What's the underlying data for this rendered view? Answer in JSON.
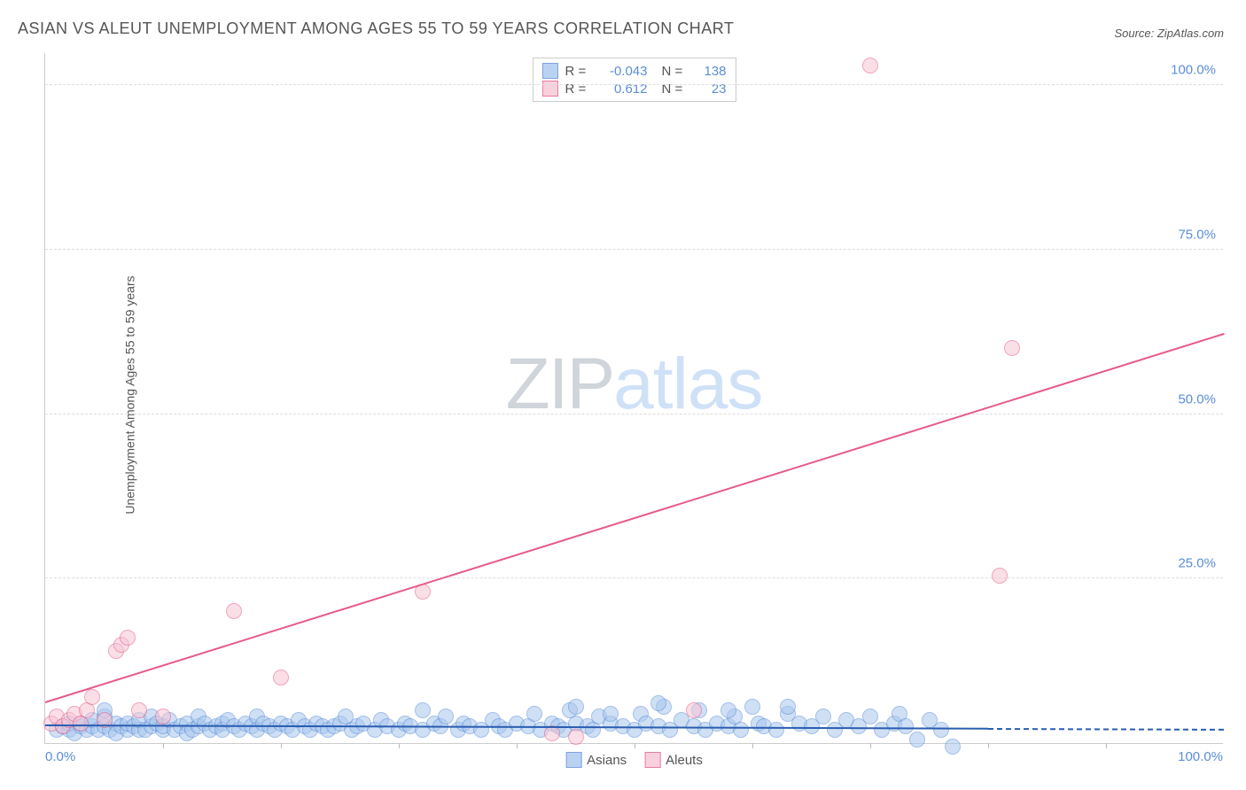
{
  "title": "ASIAN VS ALEUT UNEMPLOYMENT AMONG AGES 55 TO 59 YEARS CORRELATION CHART",
  "source": "Source: ZipAtlas.com",
  "y_axis_label": "Unemployment Among Ages 55 to 59 years",
  "watermark": {
    "part1": "ZIP",
    "part2": "atlas"
  },
  "chart": {
    "type": "scatter",
    "xlim": [
      0,
      100
    ],
    "ylim": [
      0,
      105
    ],
    "x_ticks": {
      "start": "0.0%",
      "end": "100.0%"
    },
    "y_ticks": [
      {
        "v": 25,
        "label": "25.0%"
      },
      {
        "v": 50,
        "label": "50.0%"
      },
      {
        "v": 75,
        "label": "75.0%"
      },
      {
        "v": 100,
        "label": "100.0%"
      }
    ],
    "minor_x_ticks_count": 10,
    "background_color": "#ffffff",
    "grid_color": "#dddddd",
    "axis_color": "#cccccc",
    "tick_label_color": "#5b8dd6",
    "label_color": "#555555",
    "title_fontsize": 18,
    "tick_fontsize": 15,
    "label_fontsize": 14,
    "marker_radius": 9,
    "marker_stroke_width": 1.5,
    "series": [
      {
        "name": "Asians",
        "fill_color": "#a9c7ee",
        "stroke_color": "#5b8dd6",
        "fill_opacity": 0.55,
        "R": "-0.043",
        "N": "138",
        "trend": {
          "x1": 0,
          "y1": 2.5,
          "x2": 80,
          "y2": 2.0,
          "dash_to_x": 100,
          "color": "#2a5db0",
          "width": 2
        },
        "points": [
          [
            1,
            2
          ],
          [
            1.5,
            2.5
          ],
          [
            2,
            2
          ],
          [
            2,
            3
          ],
          [
            2.5,
            1.5
          ],
          [
            3,
            2.5
          ],
          [
            3,
            3
          ],
          [
            3.5,
            2
          ],
          [
            4,
            2.5
          ],
          [
            4,
            3.5
          ],
          [
            4.5,
            2
          ],
          [
            5,
            2.5
          ],
          [
            5,
            4
          ],
          [
            5.5,
            2
          ],
          [
            6,
            3
          ],
          [
            6,
            1.5
          ],
          [
            6.5,
            2.5
          ],
          [
            7,
            2
          ],
          [
            7,
            3
          ],
          [
            7.5,
            2.5
          ],
          [
            8,
            2
          ],
          [
            8,
            3.5
          ],
          [
            8.5,
            2
          ],
          [
            9,
            2.5
          ],
          [
            9,
            4
          ],
          [
            9.5,
            3
          ],
          [
            10,
            2
          ],
          [
            10,
            2.5
          ],
          [
            10.5,
            3.5
          ],
          [
            11,
            2
          ],
          [
            11.5,
            2.5
          ],
          [
            12,
            3
          ],
          [
            12,
            1.5
          ],
          [
            12.5,
            2
          ],
          [
            13,
            2.5
          ],
          [
            13,
            4
          ],
          [
            13.5,
            3
          ],
          [
            14,
            2
          ],
          [
            14.5,
            2.5
          ],
          [
            15,
            3
          ],
          [
            15,
            2
          ],
          [
            15.5,
            3.5
          ],
          [
            16,
            2.5
          ],
          [
            16.5,
            2
          ],
          [
            17,
            3
          ],
          [
            17.5,
            2.5
          ],
          [
            18,
            2
          ],
          [
            18,
            4
          ],
          [
            18.5,
            3
          ],
          [
            19,
            2.5
          ],
          [
            19.5,
            2
          ],
          [
            20,
            3
          ],
          [
            20.5,
            2.5
          ],
          [
            21,
            2
          ],
          [
            21.5,
            3.5
          ],
          [
            22,
            2.5
          ],
          [
            22.5,
            2
          ],
          [
            23,
            3
          ],
          [
            23.5,
            2.5
          ],
          [
            24,
            2
          ],
          [
            24.5,
            2.5
          ],
          [
            25,
            3
          ],
          [
            25.5,
            4
          ],
          [
            26,
            2
          ],
          [
            26.5,
            2.5
          ],
          [
            27,
            3
          ],
          [
            28,
            2
          ],
          [
            28.5,
            3.5
          ],
          [
            29,
            2.5
          ],
          [
            30,
            2
          ],
          [
            30.5,
            3
          ],
          [
            31,
            2.5
          ],
          [
            32,
            2
          ],
          [
            33,
            3
          ],
          [
            33.5,
            2.5
          ],
          [
            34,
            4
          ],
          [
            35,
            2
          ],
          [
            35.5,
            3
          ],
          [
            36,
            2.5
          ],
          [
            37,
            2
          ],
          [
            38,
            3.5
          ],
          [
            38.5,
            2.5
          ],
          [
            39,
            2
          ],
          [
            40,
            3
          ],
          [
            41,
            2.5
          ],
          [
            41.5,
            4.5
          ],
          [
            42,
            2
          ],
          [
            43,
            3
          ],
          [
            43.5,
            2.5
          ],
          [
            44,
            2
          ],
          [
            44.5,
            5
          ],
          [
            45,
            3
          ],
          [
            46,
            2.5
          ],
          [
            46.5,
            2
          ],
          [
            47,
            4
          ],
          [
            48,
            3
          ],
          [
            49,
            2.5
          ],
          [
            50,
            2
          ],
          [
            50.5,
            4.5
          ],
          [
            51,
            3
          ],
          [
            52,
            2.5
          ],
          [
            52.5,
            5.5
          ],
          [
            53,
            2
          ],
          [
            54,
            3.5
          ],
          [
            55,
            2.5
          ],
          [
            55.5,
            5
          ],
          [
            56,
            2
          ],
          [
            57,
            3
          ],
          [
            58,
            2.5
          ],
          [
            58.5,
            4
          ],
          [
            59,
            2
          ],
          [
            60,
            5.5
          ],
          [
            60.5,
            3
          ],
          [
            61,
            2.5
          ],
          [
            62,
            2
          ],
          [
            63,
            4.5
          ],
          [
            64,
            3
          ],
          [
            65,
            2.5
          ],
          [
            66,
            4
          ],
          [
            67,
            2
          ],
          [
            68,
            3.5
          ],
          [
            69,
            2.5
          ],
          [
            70,
            4
          ],
          [
            71,
            2
          ],
          [
            72,
            3
          ],
          [
            72.5,
            4.5
          ],
          [
            73,
            2.5
          ],
          [
            74,
            0.5
          ],
          [
            75,
            3.5
          ],
          [
            76,
            2
          ],
          [
            77,
            -0.5
          ],
          [
            5,
            5
          ],
          [
            32,
            5
          ],
          [
            45,
            5.5
          ],
          [
            52,
            6
          ],
          [
            58,
            5
          ],
          [
            63,
            5.5
          ],
          [
            48,
            4.5
          ]
        ]
      },
      {
        "name": "Aleuts",
        "fill_color": "#f7c6d5",
        "stroke_color": "#e65a8a",
        "fill_opacity": 0.55,
        "R": "0.612",
        "N": "23",
        "trend": {
          "x1": 0,
          "y1": 6,
          "x2": 100,
          "y2": 62,
          "color": "#e65a8a",
          "width": 2
        },
        "points": [
          [
            0.5,
            3
          ],
          [
            1,
            4
          ],
          [
            1.5,
            2.5
          ],
          [
            2,
            3.5
          ],
          [
            2.5,
            4.5
          ],
          [
            3,
            3
          ],
          [
            3.5,
            5
          ],
          [
            4,
            7
          ],
          [
            5,
            3.5
          ],
          [
            6,
            14
          ],
          [
            6.5,
            15
          ],
          [
            7,
            16
          ],
          [
            8,
            5
          ],
          [
            10,
            4
          ],
          [
            16,
            20
          ],
          [
            20,
            10
          ],
          [
            32,
            23
          ],
          [
            43,
            1.5
          ],
          [
            45,
            1
          ],
          [
            55,
            5
          ],
          [
            70,
            103
          ],
          [
            81,
            25.5
          ],
          [
            82,
            60
          ]
        ]
      }
    ],
    "stats_box": {
      "border_color": "#cccccc",
      "bg_color": "#ffffff",
      "r_label": "R =",
      "n_label": "N ="
    },
    "legend_bottom": {
      "items": [
        "Asians",
        "Aleuts"
      ]
    }
  }
}
